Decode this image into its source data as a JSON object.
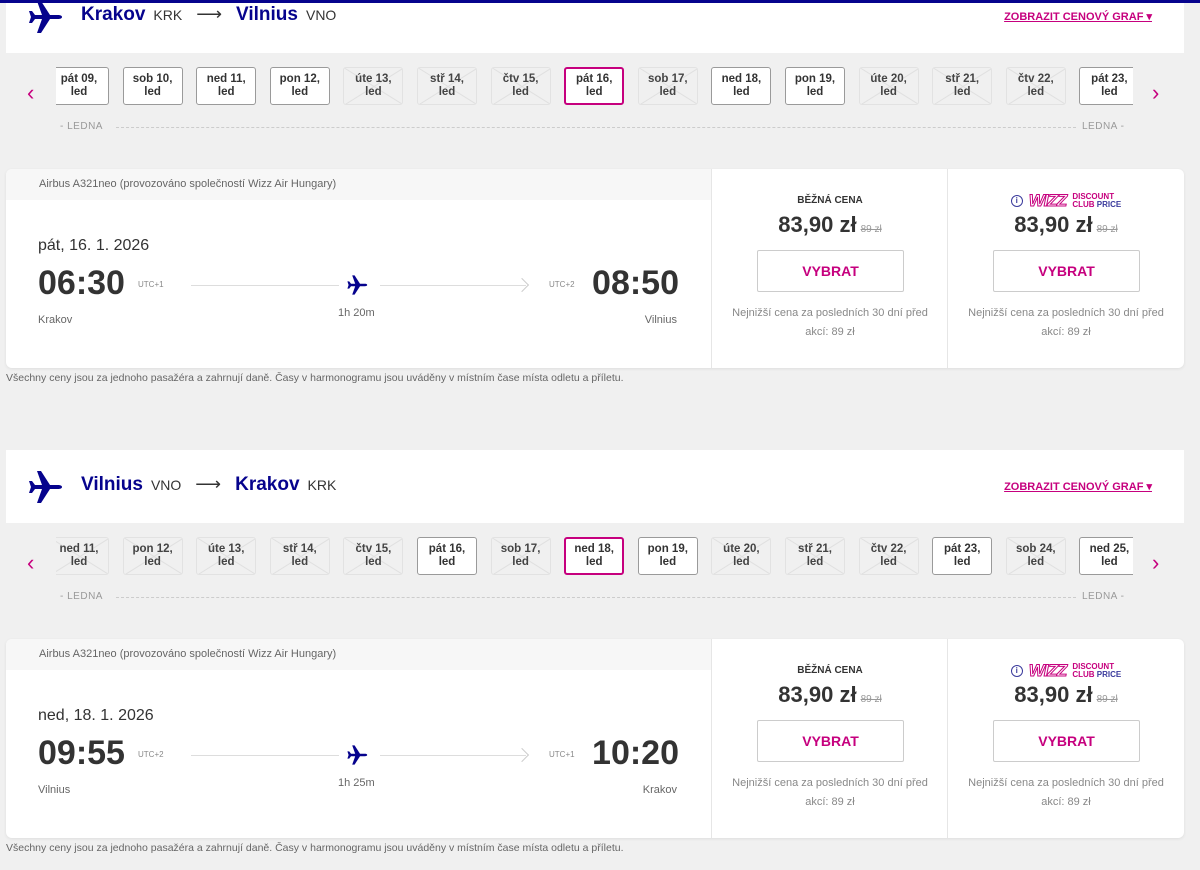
{
  "colors": {
    "brand_navy": "#06038d",
    "accent_magenta": "#c6007e"
  },
  "sections": [
    {
      "from_city": "Krakov",
      "from_code": "KRK",
      "to_city": "Vilnius",
      "to_code": "VNO",
      "price_graph_link": "ZOBRAZIT CENOVÝ GRAF ▾",
      "month_label_left": "LEDNA",
      "month_label_right": "LEDNA",
      "dates": [
        {
          "label": "pát 09,",
          "sub": "led",
          "state": "available"
        },
        {
          "label": "sob 10,",
          "sub": "led",
          "state": "available"
        },
        {
          "label": "ned 11,",
          "sub": "led",
          "state": "available"
        },
        {
          "label": "pon 12,",
          "sub": "led",
          "state": "available"
        },
        {
          "label": "úte 13,",
          "sub": "led",
          "state": "disabled"
        },
        {
          "label": "stř 14,",
          "sub": "led",
          "state": "disabled"
        },
        {
          "label": "čtv 15,",
          "sub": "led",
          "state": "disabled"
        },
        {
          "label": "pát 16,",
          "sub": "led",
          "state": "selected"
        },
        {
          "label": "sob 17,",
          "sub": "led",
          "state": "disabled"
        },
        {
          "label": "ned 18,",
          "sub": "led",
          "state": "available"
        },
        {
          "label": "pon 19,",
          "sub": "led",
          "state": "available"
        },
        {
          "label": "úte 20,",
          "sub": "led",
          "state": "disabled"
        },
        {
          "label": "stř 21,",
          "sub": "led",
          "state": "disabled"
        },
        {
          "label": "čtv 22,",
          "sub": "led",
          "state": "disabled"
        },
        {
          "label": "pát 23,",
          "sub": "led",
          "state": "available"
        }
      ],
      "flight": {
        "aircraft": "Airbus A321neo (provozováno společností Wizz Air Hungary)",
        "date": "pát, 16. 1. 2026",
        "dep_time": "06:30",
        "dep_utc": "UTC+1",
        "dep_place": "Krakov",
        "arr_time": "08:50",
        "arr_utc": "UTC+2",
        "arr_place": "Vilnius",
        "duration": "1h 20m",
        "regular": {
          "label": "BĚŽNÁ CENA",
          "price": "83,90 zł",
          "old_price": "89 zł",
          "button": "VYBRAT",
          "note": "Nejnižší cena za posledních 30 dní před akcí: 89 zł"
        },
        "club": {
          "logo_text": "WIZZ",
          "logo_line1": "DISCOUNT",
          "logo_line2a": "CLUB",
          "logo_line2b": "PRICE",
          "price": "83,90 zł",
          "old_price": "89 zł",
          "button": "VYBRAT",
          "note": "Nejnižší cena za posledních 30 dní před akcí: 89 zł"
        }
      },
      "footnote": "Všechny ceny jsou za jednoho pasažéra a zahrnují daně. Časy v harmonogramu jsou uváděny v místním čase místa odletu a příletu."
    },
    {
      "from_city": "Vilnius",
      "from_code": "VNO",
      "to_city": "Krakov",
      "to_code": "KRK",
      "price_graph_link": "ZOBRAZIT CENOVÝ GRAF ▾",
      "month_label_left": "LEDNA",
      "month_label_right": "LEDNA",
      "dates": [
        {
          "label": "ned 11,",
          "sub": "led",
          "state": "disabled"
        },
        {
          "label": "pon 12,",
          "sub": "led",
          "state": "disabled"
        },
        {
          "label": "úte 13,",
          "sub": "led",
          "state": "disabled"
        },
        {
          "label": "stř 14,",
          "sub": "led",
          "state": "disabled"
        },
        {
          "label": "čtv 15,",
          "sub": "led",
          "state": "disabled"
        },
        {
          "label": "pát 16,",
          "sub": "led",
          "state": "available"
        },
        {
          "label": "sob 17,",
          "sub": "led",
          "state": "disabled"
        },
        {
          "label": "ned 18,",
          "sub": "led",
          "state": "selected"
        },
        {
          "label": "pon 19,",
          "sub": "led",
          "state": "available"
        },
        {
          "label": "úte 20,",
          "sub": "led",
          "state": "disabled"
        },
        {
          "label": "stř 21,",
          "sub": "led",
          "state": "disabled"
        },
        {
          "label": "čtv 22,",
          "sub": "led",
          "state": "disabled"
        },
        {
          "label": "pát 23,",
          "sub": "led",
          "state": "available"
        },
        {
          "label": "sob 24,",
          "sub": "led",
          "state": "disabled"
        },
        {
          "label": "ned 25,",
          "sub": "led",
          "state": "available"
        }
      ],
      "flight": {
        "aircraft": "Airbus A321neo (provozováno společností Wizz Air Hungary)",
        "date": "ned, 18. 1. 2026",
        "dep_time": "09:55",
        "dep_utc": "UTC+2",
        "dep_place": "Vilnius",
        "arr_time": "10:20",
        "arr_utc": "UTC+1",
        "arr_place": "Krakov",
        "duration": "1h 25m",
        "regular": {
          "label": "BĚŽNÁ CENA",
          "price": "83,90 zł",
          "old_price": "89 zł",
          "button": "VYBRAT",
          "note": "Nejnižší cena za posledních 30 dní před akcí: 89 zł"
        },
        "club": {
          "logo_text": "WIZZ",
          "logo_line1": "DISCOUNT",
          "logo_line2a": "CLUB",
          "logo_line2b": "PRICE",
          "price": "83,90 zł",
          "old_price": "89 zł",
          "button": "VYBRAT",
          "note": "Nejnižší cena za posledních 30 dní před akcí: 89 zł"
        }
      },
      "footnote": "Všechny ceny jsou za jednoho pasažéra a zahrnují daně. Časy v harmonogramu jsou uváděny v místním čase místa odletu a příletu."
    }
  ]
}
